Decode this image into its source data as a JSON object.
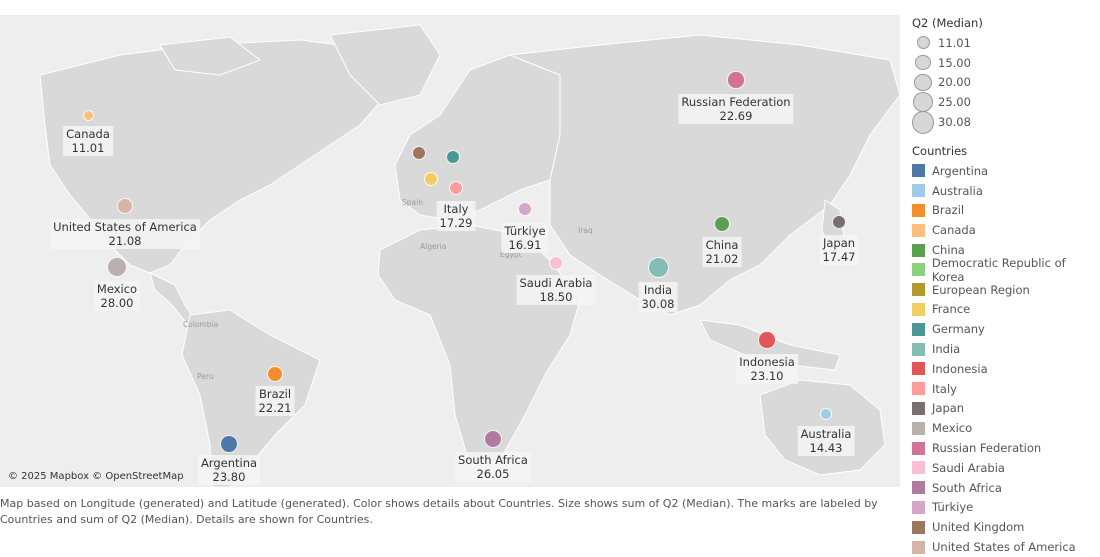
{
  "map": {
    "copyright": "© 2025 Mapbox © OpenStreetMap",
    "geo_labels": [
      "Spain",
      "Algeria",
      "Egypt",
      "Iraq",
      "Colombia",
      "Peru"
    ]
  },
  "caption": "Map based on Longitude (generated) and Latitude (generated).  Color shows details about Countries.  Size shows sum of Q2 (Median).  The marks are labeled by Countries and sum of Q2 (Median).  Details are shown for Countries.",
  "size_legend": {
    "title": "Q2 (Median)",
    "values": [
      "11.01",
      "15.00",
      "20.00",
      "25.00",
      "30.08"
    ]
  },
  "color_legend": {
    "title": "Countries",
    "items": [
      {
        "name": "Argentina",
        "color": "#4e79a7"
      },
      {
        "name": "Australia",
        "color": "#a0cbe8"
      },
      {
        "name": "Brazil",
        "color": "#f28e2b"
      },
      {
        "name": "Canada",
        "color": "#ffbe7d"
      },
      {
        "name": "China",
        "color": "#59a14f"
      },
      {
        "name": "Democratic Republic of Korea",
        "color": "#8cd17d"
      },
      {
        "name": "European Region",
        "color": "#b6992d"
      },
      {
        "name": "France",
        "color": "#f1ce63"
      },
      {
        "name": "Germany",
        "color": "#499894"
      },
      {
        "name": "India",
        "color": "#86bcb6"
      },
      {
        "name": "Indonesia",
        "color": "#e15759"
      },
      {
        "name": "Italy",
        "color": "#ff9d9a"
      },
      {
        "name": "Japan",
        "color": "#79706e"
      },
      {
        "name": "Mexico",
        "color": "#bab0ac"
      },
      {
        "name": "Russian Federation",
        "color": "#d37295"
      },
      {
        "name": "Saudi Arabia",
        "color": "#fabfd2"
      },
      {
        "name": "South Africa",
        "color": "#b07aa1"
      },
      {
        "name": "Türkiye",
        "color": "#d4a6c8"
      },
      {
        "name": "United Kingdom",
        "color": "#9d7660"
      },
      {
        "name": "United States of America",
        "color": "#d7b5a6"
      }
    ]
  },
  "marks": [
    {
      "name": "Canada",
      "value": "11.01",
      "color": "#ffbe7d"
    },
    {
      "name": "United States of America",
      "value": "21.08",
      "color": "#d7b5a6"
    },
    {
      "name": "Mexico",
      "value": "28.00",
      "color": "#bab0ac"
    },
    {
      "name": "Brazil",
      "value": "22.21",
      "color": "#f28e2b"
    },
    {
      "name": "Argentina",
      "value": "23.80",
      "color": "#4e79a7"
    },
    {
      "name": "United Kingdom",
      "value": "",
      "color": "#9d7660"
    },
    {
      "name": "Germany",
      "value": "",
      "color": "#499894"
    },
    {
      "name": "France",
      "value": "",
      "color": "#f1ce63"
    },
    {
      "name": "Italy",
      "value": "17.29",
      "color": "#ff9d9a"
    },
    {
      "name": "Türkiye",
      "value": "16.91",
      "color": "#d4a6c8"
    },
    {
      "name": "Saudi Arabia",
      "value": "18.50",
      "color": "#fabfd2"
    },
    {
      "name": "South Africa",
      "value": "26.05",
      "color": "#b07aa1"
    },
    {
      "name": "Russian Federation",
      "value": "22.69",
      "color": "#d37295"
    },
    {
      "name": "India",
      "value": "30.08",
      "color": "#86bcb6"
    },
    {
      "name": "China",
      "value": "21.02",
      "color": "#59a14f"
    },
    {
      "name": "Japan",
      "value": "17.47",
      "color": "#79706e"
    },
    {
      "name": "Indonesia",
      "value": "23.10",
      "color": "#e15759"
    },
    {
      "name": "Australia",
      "value": "14.43",
      "color": "#a0cbe8"
    }
  ]
}
